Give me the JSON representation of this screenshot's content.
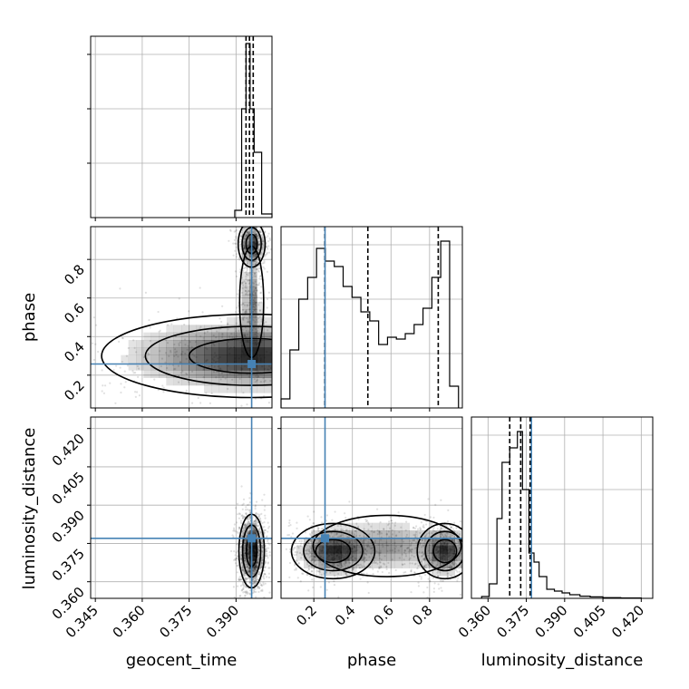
{
  "chart_data": {
    "type": "corner",
    "parameters": [
      "geocent_time",
      "phase",
      "luminosity_distance"
    ],
    "xlabels": [
      "geocent_time",
      "phase",
      "luminosity_distance"
    ],
    "ylabels": [
      "",
      "phase",
      "luminosity_distance"
    ],
    "truths": {
      "geocent_time": 0.395,
      "phase": 0.258,
      "luminosity_distance": 0.377
    },
    "truth_color": "#4682b4",
    "ranges": {
      "geocent_time": [
        0.3435,
        0.4015
      ],
      "phase": [
        0.03,
        0.97
      ],
      "luminosity_distance": [
        0.3535,
        0.4245
      ]
    },
    "ticks": {
      "geocent_time": [
        0.345,
        0.36,
        0.375,
        0.39
      ],
      "geocent_time_labels": [
        "0.345",
        "0.360",
        "0.375",
        "0.390"
      ],
      "phase": [
        0.2,
        0.4,
        0.6,
        0.8
      ],
      "phase_labels": [
        "0.2",
        "0.4",
        "0.6",
        "0.8"
      ],
      "luminosity_distance": [
        0.36,
        0.375,
        0.39,
        0.405,
        0.42
      ],
      "luminosity_distance_labels": [
        "0.360",
        "0.375",
        "0.390",
        "0.405",
        "0.420"
      ]
    },
    "quantiles": {
      "geocent_time": [
        0.3932,
        0.3943,
        0.3955
      ],
      "phase": [
        0.257,
        0.48,
        0.845
      ],
      "luminosity_distance": [
        0.3685,
        0.3728,
        0.3765
      ]
    },
    "hist": {
      "geocent_time": {
        "edges": [
          0.3896,
          0.3918,
          0.3932,
          0.3945,
          0.3958,
          0.3982,
          0.4015
        ],
        "counts": [
          0.04,
          0.6,
          0.96,
          0.6,
          0.36,
          0.02
        ]
      },
      "phase": {
        "edges": [
          0.03,
          0.076,
          0.122,
          0.168,
          0.214,
          0.26,
          0.306,
          0.352,
          0.398,
          0.444,
          0.49,
          0.536,
          0.582,
          0.628,
          0.674,
          0.72,
          0.766,
          0.812,
          0.858,
          0.904,
          0.95
        ],
        "counts": [
          0.05,
          0.32,
          0.6,
          0.72,
          0.88,
          0.81,
          0.78,
          0.67,
          0.61,
          0.53,
          0.48,
          0.35,
          0.39,
          0.38,
          0.41,
          0.46,
          0.55,
          0.72,
          0.92,
          0.12
        ]
      },
      "luminosity_distance": {
        "edges": [
          0.3575,
          0.3605,
          0.3635,
          0.3655,
          0.3685,
          0.3715,
          0.3735,
          0.376,
          0.378,
          0.38,
          0.383,
          0.386,
          0.389,
          0.392,
          0.396,
          0.4,
          0.405,
          0.412,
          0.42
        ],
        "counts": [
          0.01,
          0.08,
          0.44,
          0.75,
          0.83,
          0.92,
          0.6,
          0.25,
          0.2,
          0.12,
          0.05,
          0.04,
          0.03,
          0.02,
          0.012,
          0.008,
          0.004,
          0.002
        ]
      }
    },
    "density_centers": {
      "geocent_time_phase": [
        [
          0.395,
          0.3,
          0.02,
          0.09,
          0.5
        ],
        [
          0.395,
          0.88,
          0.0018,
          0.05,
          0.45
        ],
        [
          0.395,
          0.58,
          0.0016,
          0.12,
          0.3
        ]
      ],
      "geocent_time_luminosity_distance": [
        [
          0.395,
          0.372,
          0.0017,
          0.006,
          0.8
        ]
      ],
      "phase_luminosity_distance": [
        [
          0.3,
          0.372,
          0.09,
          0.0045,
          0.45
        ],
        [
          0.88,
          0.372,
          0.06,
          0.0045,
          0.45
        ],
        [
          0.58,
          0.374,
          0.16,
          0.005,
          0.25
        ]
      ]
    }
  }
}
